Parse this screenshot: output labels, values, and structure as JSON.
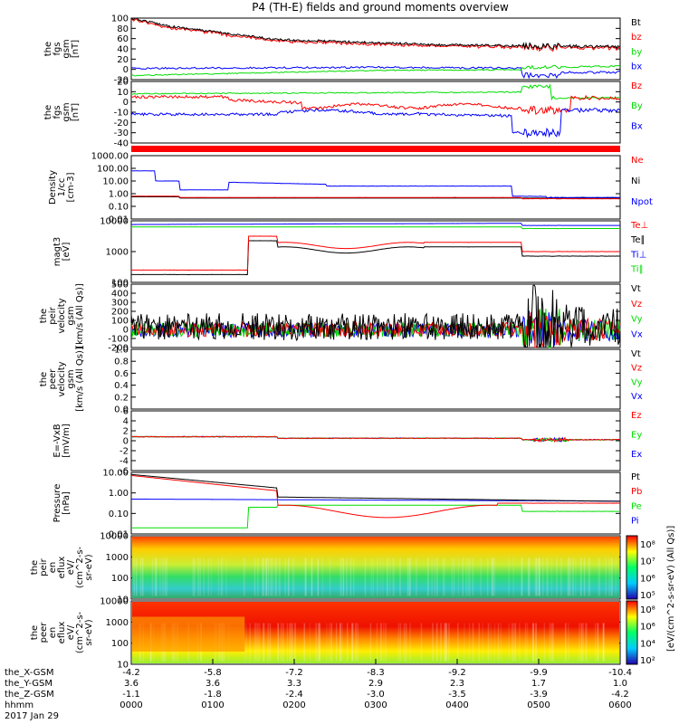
{
  "title": "P4 (TH-E) fields and ground moments overview",
  "colors": {
    "black": "#000000",
    "red": "#ff0000",
    "green": "#00dd00",
    "blue": "#0000ff"
  },
  "chart_data": {
    "type": "line",
    "date": "2017 Jan 29",
    "time_ticks": [
      "0000",
      "0100",
      "0200",
      "0300",
      "0400",
      "0500",
      "0600"
    ],
    "x_label": "hhmm",
    "ephemeris": [
      {
        "name": "the_X-GSM",
        "values": [
          "-4.2",
          "-5.8",
          "-7.2",
          "-8.3",
          "-9.2",
          "-9.9",
          "-10.4"
        ]
      },
      {
        "name": "the_Y-GSM",
        "values": [
          "3.6",
          "3.6",
          "3.3",
          "2.9",
          "2.3",
          "1.7",
          "1.0"
        ]
      },
      {
        "name": "the_Z-GSM",
        "values": [
          "-1.1",
          "-1.8",
          "-2.4",
          "-3.0",
          "-3.5",
          "-3.9",
          "-4.2"
        ]
      }
    ],
    "panels": [
      {
        "id": "p1",
        "ylabel": [
          "the",
          "fgs",
          "gsm",
          "[nT]"
        ],
        "yticks": [
          "100",
          "80",
          "60",
          "40",
          "20",
          "0",
          "-20"
        ],
        "legend": [
          {
            "t": "Bt",
            "c": "black"
          },
          {
            "t": "bz",
            "c": "red"
          },
          {
            "t": "by",
            "c": "green"
          },
          {
            "t": "bx",
            "c": "blue"
          }
        ]
      },
      {
        "id": "p2",
        "ylabel": [
          "the",
          "fgs",
          "gsm",
          "[nT]"
        ],
        "yticks": [
          "20",
          "10",
          "0",
          "-10",
          "-20",
          "-30",
          "-40"
        ],
        "legend": [
          {
            "t": "Bz",
            "c": "red"
          },
          {
            "t": "By",
            "c": "green"
          },
          {
            "t": "Bx",
            "c": "blue"
          }
        ]
      },
      {
        "id": "p3",
        "ylabel": [
          "Density",
          "1/cc",
          "[cm-3]"
        ],
        "yticks": [
          "1000.00",
          "100.00",
          "10.00",
          "1.00",
          "0.10",
          "0.01"
        ],
        "legend": [
          {
            "t": "Ne",
            "c": "red"
          },
          {
            "t": "Ni",
            "c": "black"
          },
          {
            "t": "Npot",
            "c": "blue"
          }
        ]
      },
      {
        "id": "p4",
        "ylabel": [
          "magt3",
          "[eV]"
        ],
        "yticks": [
          "10000",
          "1000",
          "100"
        ],
        "legend": [
          {
            "t": "Te⊥",
            "c": "red"
          },
          {
            "t": "Te∥",
            "c": "black"
          },
          {
            "t": "Ti⊥",
            "c": "blue"
          },
          {
            "t": "Ti∥",
            "c": "green"
          }
        ]
      },
      {
        "id": "p5",
        "ylabel": [
          "the",
          "peir",
          "velocity",
          "gsm",
          "[km/s (All Qs)]"
        ],
        "yticks": [
          "500",
          "400",
          "300",
          "200",
          "100",
          "0",
          "-100",
          "-200"
        ],
        "legend": [
          {
            "t": "Vt",
            "c": "black"
          },
          {
            "t": "Vz",
            "c": "red"
          },
          {
            "t": "Vy",
            "c": "green"
          },
          {
            "t": "Vx",
            "c": "blue"
          }
        ]
      },
      {
        "id": "p6",
        "ylabel": [
          "the",
          "peer",
          "velocity",
          "gsm",
          "[km/s (All Qs)]"
        ],
        "yticks": [
          "1.0",
          "0.8",
          "0.6",
          "0.4",
          "0.2",
          "0.0"
        ],
        "legend": [
          {
            "t": "Vt",
            "c": "black"
          },
          {
            "t": "Vz",
            "c": "red"
          },
          {
            "t": "Vy",
            "c": "green"
          },
          {
            "t": "Vx",
            "c": "blue"
          }
        ]
      },
      {
        "id": "p7",
        "ylabel": [
          "E=-VxB",
          "[mV/m]"
        ],
        "yticks": [
          "6",
          "4",
          "2",
          "0",
          "-2",
          "-4",
          "-6"
        ],
        "legend": [
          {
            "t": "Ez",
            "c": "red"
          },
          {
            "t": "Ey",
            "c": "green"
          },
          {
            "t": "Ex",
            "c": "blue"
          }
        ]
      },
      {
        "id": "p8",
        "ylabel": [
          "Pressure",
          "[nPa]"
        ],
        "yticks": [
          "10.00",
          "1.00",
          "0.10",
          "0.01"
        ],
        "legend": [
          {
            "t": "Pt",
            "c": "black"
          },
          {
            "t": "Pb",
            "c": "red"
          },
          {
            "t": "Pe",
            "c": "green"
          },
          {
            "t": "Pi",
            "c": "blue"
          }
        ]
      },
      {
        "id": "p9",
        "ylabel": [
          "the",
          "peir",
          "en",
          "eflux",
          "eV/",
          "(cm^2-s-",
          "sr-eV)"
        ],
        "yticks": [
          "10000",
          "1000",
          "100",
          "10"
        ],
        "colorbar": {
          "ticks": [
            "10⁸",
            "10⁷",
            "10⁶",
            "10⁵"
          ],
          "label": "[eV/(cm^2-s-sr-eV) (All Qs)]"
        }
      },
      {
        "id": "p10",
        "ylabel": [
          "the",
          "peer",
          "en",
          "eflux",
          "eV/",
          "(cm^2-s-",
          "sr-eV)"
        ],
        "yticks": [
          "10000",
          "1000",
          "100",
          "10"
        ],
        "colorbar": {
          "ticks": [
            "10⁸",
            "10⁶",
            "10⁴",
            "10²"
          ],
          "label": "[eV/(cm^2-s-sr-eV)]"
        }
      }
    ],
    "side_label": "[eV/(cm^2-s-sr-eV)]"
  }
}
